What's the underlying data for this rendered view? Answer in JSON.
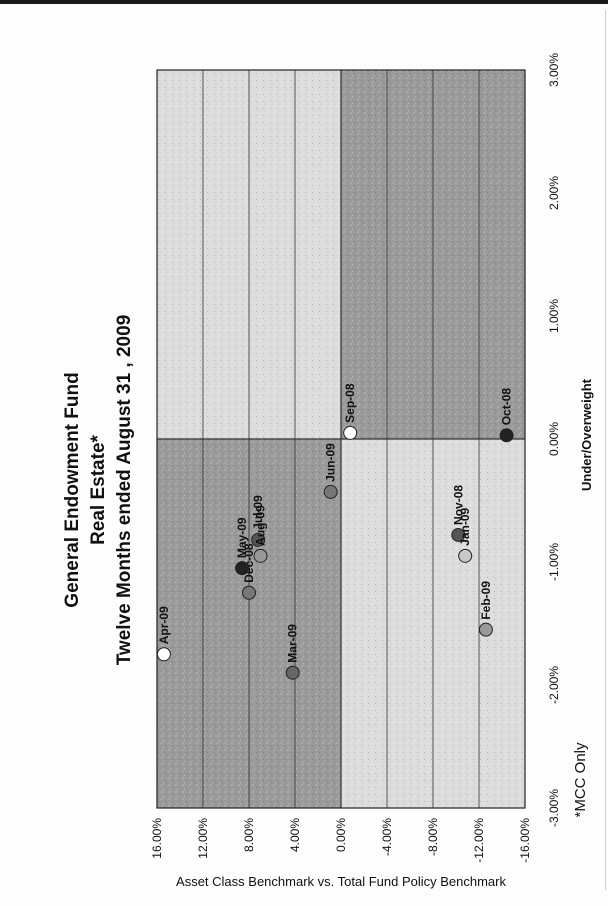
{
  "chart_data": {
    "type": "scatter",
    "title": [
      "General Endowment Fund",
      "Real Estate*",
      "Twelve Months ended August  31 , 2009"
    ],
    "xlabel": "Under/Overweight",
    "ylabel": "Asset Class Benchmark vs. Total Fund Policy Benchmark",
    "note": "*MCC Only",
    "xlim": [
      -3.0,
      3.0
    ],
    "ylim": [
      -16.0,
      16.0
    ],
    "x_ticks": [
      "-3.00%",
      "-2.00%",
      "-1.00%",
      "0.00%",
      "1.00%",
      "2.00%",
      "3.00%"
    ],
    "y_ticks": [
      "16.00%",
      "12.00%",
      "8.00%",
      "4.00%",
      "0.00%",
      "-4.00%",
      "-8.00%",
      "-12.00%",
      "-16.00%"
    ],
    "grid": true,
    "quadrant_colors": {
      "dark": "#9a9a9a",
      "light": "#dcdcdc"
    },
    "points": [
      {
        "label": "Sep-08",
        "x": 0.05,
        "y": -0.8,
        "color": "#ffffff"
      },
      {
        "label": "Oct-08",
        "x": 0.03,
        "y": -14.4,
        "color": "#222222"
      },
      {
        "label": "Nov-08",
        "x": -0.78,
        "y": -10.2,
        "color": "#555555"
      },
      {
        "label": "Dec-08",
        "x": -1.25,
        "y": 8.0,
        "color": "#777777"
      },
      {
        "label": "Jan-09",
        "x": -0.95,
        "y": -10.8,
        "color": "#c8c8c8"
      },
      {
        "label": "Feb-09",
        "x": -1.55,
        "y": -12.6,
        "color": "#999999"
      },
      {
        "label": "Mar-09",
        "x": -1.9,
        "y": 4.2,
        "color": "#666666"
      },
      {
        "label": "Apr-09",
        "x": -1.75,
        "y": 15.4,
        "color": "#ffffff"
      },
      {
        "label": "May-09",
        "x": -1.05,
        "y": 8.6,
        "color": "#222222"
      },
      {
        "label": "Jun-09",
        "x": -0.43,
        "y": 0.9,
        "color": "#777777"
      },
      {
        "label": "Jul-09",
        "x": -0.82,
        "y": 7.2,
        "color": "#555555"
      },
      {
        "label": "Aug-09",
        "x": -0.95,
        "y": 7.0,
        "color": "#999999"
      }
    ]
  }
}
